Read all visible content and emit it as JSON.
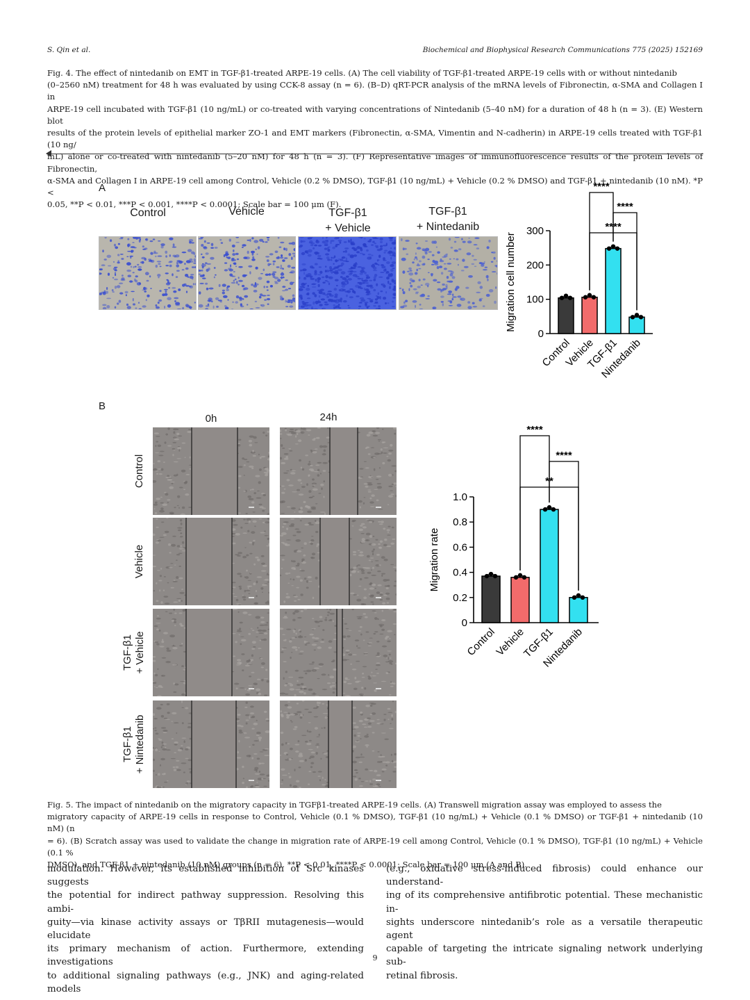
{
  "header": {
    "left": "S. Qin et al.",
    "right": "Biochemical and Biophysical Research Communications 775 (2025) 152169"
  },
  "fig4": {
    "lines": [
      "Fig. 4. The effect of nintedanib on EMT in TGF-β1-treated ARPE-19 cells. (A) The cell viability of TGF-β1-treated ARPE-19 cells with or without nintedanib",
      "(0–2560 nM) treatment for 48 h was evaluated by using CCK-8 assay (n = 6). (B–D) qRT-PCR analysis of the mRNA levels of Fibronectin, α-SMA and Collagen I in",
      "ARPE-19 cell incubated with TGF-β1 (10 ng/mL) or co-treated with varying concentrations of Nintedanib (5–40 nM) for a duration of 48 h (n = 3). (E) Western blot",
      "results of the protein levels of epithelial marker ZO-1 and EMT markers (Fibronectin, α-SMA, Vimentin and N-cadherin) in ARPE-19 cells treated with TGF-β1 (10 ng/",
      "mL) alone or co-treated with nintedanib (5–20 nM) for 48 h (n = 3). (F) Representative images of immunofluorescence results of the protein levels of Fibronectin,",
      "α-SMA and Collagen I in ARPE-19 cell among Control, Vehicle (0.2 % DMSO), TGF-β1 (10 ng/mL) + Vehicle (0.2 % DMSO) and TGF-β1 + nintedanib (10 nM). *P <",
      "0.05, **P < 0.01, ***P < 0.001, ****P < 0.0001; Scale bar = 100 μm (F)."
    ]
  },
  "panelA": {
    "label": "A",
    "images": [
      {
        "title1": "",
        "title2": "Control"
      },
      {
        "title1": "",
        "title2": "Vehicle"
      },
      {
        "title1": "TGF-β1",
        "title2": "+ Vehicle"
      },
      {
        "title1": "TGF-β1",
        "title2": "+ Nintedanib"
      }
    ]
  },
  "panelB": {
    "label": "B",
    "col_headers": [
      "0h",
      "24h"
    ],
    "row_labels": [
      {
        "l1": "Control",
        "l2": ""
      },
      {
        "l1": "Vehicle",
        "l2": ""
      },
      {
        "l1": "TGF-β1",
        "l2": "+ Vehicle"
      },
      {
        "l1": "TGF-β1",
        "l2": "+ Nintedanib"
      }
    ]
  },
  "chart_data": [
    {
      "type": "bar",
      "ylabel": "Migration cell number",
      "categories": [
        "Control",
        "Vehicle",
        "TGF-β1",
        "Nintedanib"
      ],
      "values": [
        104,
        106,
        248,
        48
      ],
      "colors": [
        "#3a3a3a",
        "#f26b6b",
        "#33e0f0",
        "#33e0f0"
      ],
      "ylim": [
        0,
        300
      ],
      "yticks": [
        0,
        100,
        200,
        300
      ],
      "significance": [
        {
          "from": 2,
          "to": 1,
          "label": "****"
        },
        {
          "from": 3,
          "to": 2,
          "label": "****"
        },
        {
          "from": 3,
          "to": 1,
          "label": "****"
        }
      ]
    },
    {
      "type": "bar",
      "ylabel": "Migration rate",
      "categories": [
        "Control",
        "Vehicle",
        "TGF-β1",
        "Nintedanib"
      ],
      "values": [
        0.37,
        0.36,
        0.9,
        0.2
      ],
      "colors": [
        "#3a3a3a",
        "#f26b6b",
        "#33e0f0",
        "#33e0f0"
      ],
      "ylim": [
        0,
        1.0
      ],
      "yticks": [
        0,
        0.2,
        0.4,
        0.6,
        0.8,
        1.0
      ],
      "ytick_labels": [
        "0",
        "0.2",
        "0.4",
        "0.6",
        "0.8",
        "1.0"
      ],
      "significance": [
        {
          "from": 2,
          "to": 1,
          "label": "****"
        },
        {
          "from": 3,
          "to": 2,
          "label": "****"
        },
        {
          "from": 3,
          "to": 1,
          "label": "**"
        }
      ]
    }
  ],
  "fig5": {
    "lines": [
      "Fig. 5. The impact of nintedanib on the migratory capacity in TGFβ1-treated ARPE-19 cells. (A) Transwell migration assay was employed to assess the",
      "migratory capacity of ARPE-19 cells in response to Control, Vehicle (0.1 % DMSO), TGF-β1 (10 ng/mL) + Vehicle (0.1 % DMSO) or TGF-β1 + nintedanib (10 nM) (n",
      "= 6). (B) Scratch assay was used to validate the change in migration rate of ARPE-19 cell among Control, Vehicle (0.1 % DMSO), TGF-β1 (10 ng/mL) + Vehicle (0.1 %",
      "DMSO), and TGF-β1 + nintedanib (10 nM) groups (n = 6). **P < 0.01, ****P < 0.0001; Scale bar = 100 μm (A and B)."
    ]
  },
  "body": {
    "left": [
      "modulation. However, its established inhibition of Src kinases suggests",
      "the potential for indirect pathway suppression. Resolving this ambi-",
      "guity—via kinase activity assays or TβRII mutagenesis—would elucidate",
      "its primary mechanism of action. Furthermore, extending investigations",
      "to additional signaling pathways (e.g., JNK) and aging-related models"
    ],
    "right": [
      "(e.g., oxidative stress-induced fibrosis) could enhance our understand-",
      "ing of its comprehensive antifibrotic potential. These mechanistic in-",
      "sights underscore nintedanib’s role as a versatile therapeutic agent",
      "capable of targeting the intricate signaling network underlying sub-",
      "retinal fibrosis."
    ]
  },
  "page_number": "9"
}
